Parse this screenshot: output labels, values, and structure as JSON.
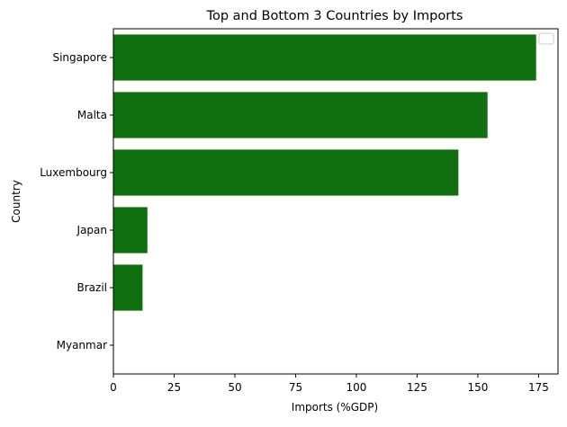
{
  "chart_data": {
    "type": "bar",
    "orientation": "horizontal",
    "title": "Top and Bottom 3 Countries by Imports",
    "xlabel": "Imports (%GDP)",
    "ylabel": "Country",
    "categories": [
      "Singapore",
      "Malta",
      "Luxembourg",
      "Japan",
      "Brazil",
      "Myanmar"
    ],
    "values": [
      174,
      154,
      142,
      14,
      12,
      0
    ],
    "xlim": [
      0,
      183
    ],
    "xticks": [
      0,
      25,
      50,
      75,
      100,
      125,
      150,
      175
    ],
    "bar_color": "#107010",
    "grid": false,
    "legend": "top-right (empty)"
  }
}
